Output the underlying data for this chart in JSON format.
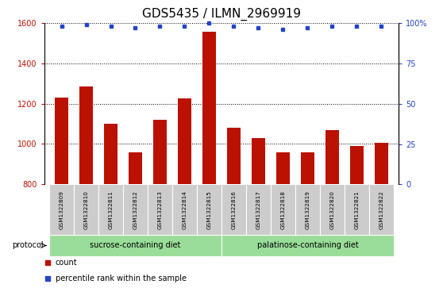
{
  "title": "GDS5435 / ILMN_2969919",
  "samples": [
    "GSM1322809",
    "GSM1322810",
    "GSM1322811",
    "GSM1322812",
    "GSM1322813",
    "GSM1322814",
    "GSM1322815",
    "GSM1322816",
    "GSM1322817",
    "GSM1322818",
    "GSM1322819",
    "GSM1322820",
    "GSM1322821",
    "GSM1322822"
  ],
  "bar_values": [
    1230,
    1285,
    1100,
    960,
    1120,
    1225,
    1555,
    1080,
    1030,
    960,
    960,
    1070,
    990,
    1005
  ],
  "percentile_values": [
    98,
    99,
    98,
    97,
    98,
    98,
    100,
    98,
    97,
    96,
    97,
    98,
    98,
    98
  ],
  "bar_color": "#bb1100",
  "percentile_color": "#2244cc",
  "ylim_left": [
    800,
    1600
  ],
  "ylim_right": [
    0,
    100
  ],
  "yticks_left": [
    800,
    1000,
    1200,
    1400,
    1600
  ],
  "yticks_right": [
    0,
    25,
    50,
    75,
    100
  ],
  "ytick_labels_right": [
    "0",
    "25",
    "50",
    "75",
    "100%"
  ],
  "grid_yticks": [
    1000,
    1200,
    1400
  ],
  "group1_label": "sucrose-containing diet",
  "group1_count": 7,
  "group2_label": "palatinose-containing diet",
  "group1_color": "#99dd99",
  "group2_color": "#99dd99",
  "cell_color": "#cccccc",
  "protocol_label": "protocol",
  "legend_count_label": "count",
  "legend_percentile_label": "percentile rank within the sample",
  "title_fontsize": 11,
  "tick_label_fontsize": 7,
  "bar_width": 0.55
}
